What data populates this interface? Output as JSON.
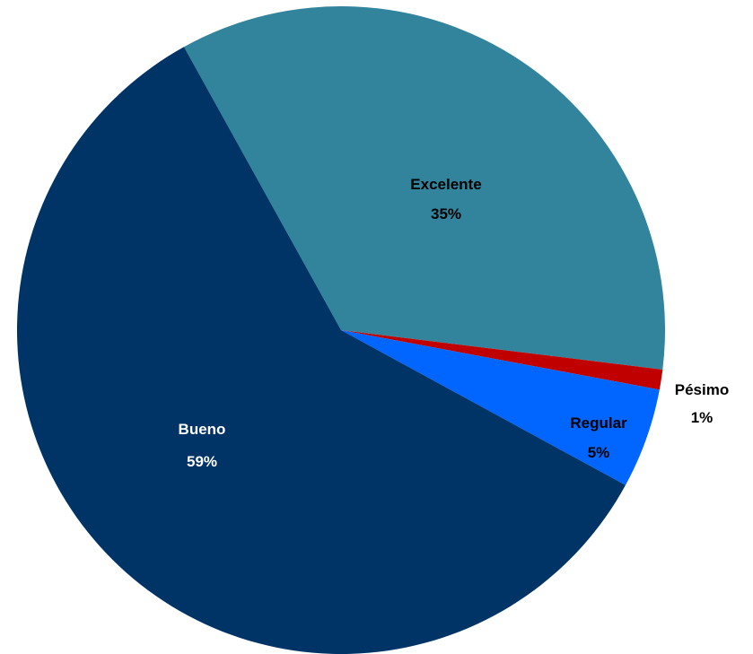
{
  "chart_data": {
    "type": "pie",
    "title": "",
    "slices": [
      {
        "name": "Excelente",
        "value": 35,
        "label": "35%",
        "color": "#31849B",
        "label_color": "#000000"
      },
      {
        "name": "Pésimo",
        "value": 1,
        "label": "1%",
        "color": "#C00000",
        "label_color": "#000000"
      },
      {
        "name": "Regular",
        "value": 5,
        "label": "5%",
        "color": "#0066FF",
        "label_color": "#000000"
      },
      {
        "name": "Bueno",
        "value": 59,
        "label": "59%",
        "color": "#003366",
        "label_color": "#FFFFFF"
      }
    ]
  }
}
